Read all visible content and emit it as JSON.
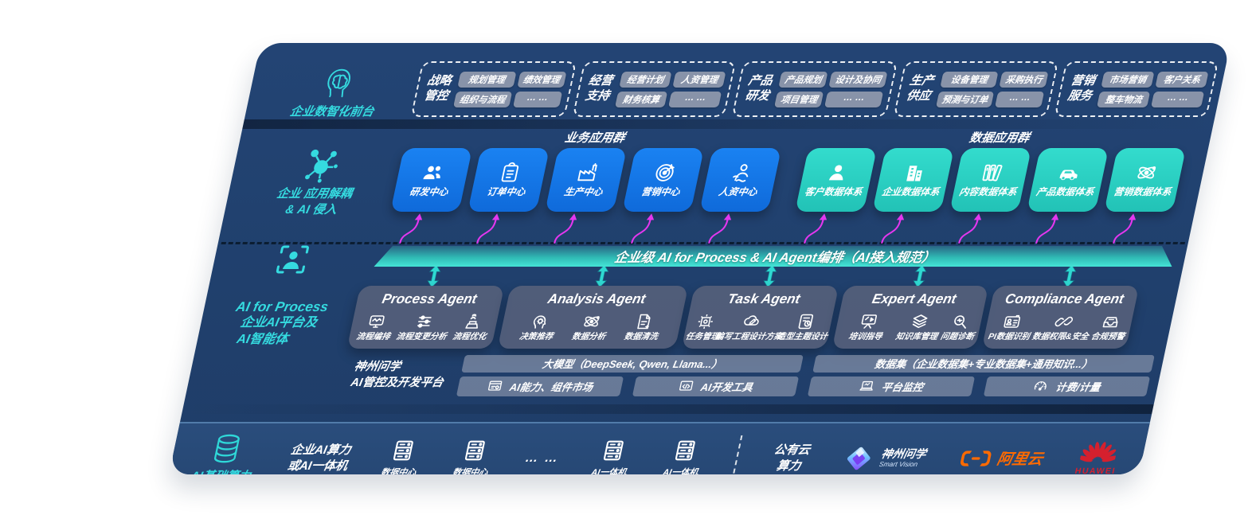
{
  "colors": {
    "navy": "#20406d",
    "accent_teal": "#35dbe0",
    "blue_box": "#1478ea",
    "teal_box": "#2cd3c5",
    "banner_teal": "#45e4d6",
    "magenta_arrow": "#e437ef",
    "aliyun_orange": "#ff6a00",
    "huawei_red": "#d5202e"
  },
  "front_office": {
    "icon": "brain-head-icon",
    "label": "企业数智化前台",
    "groups": [
      {
        "title": "战略管控",
        "items": [
          "规划管理",
          "绩效管理",
          "组织与流程",
          "… …"
        ]
      },
      {
        "title": "经营支持",
        "items": [
          "经营计划",
          "人资管理",
          "财务核算",
          "… …"
        ]
      },
      {
        "title": "产品研发",
        "items": [
          "产品规划",
          "设计及协同",
          "项目管理",
          "… …"
        ]
      },
      {
        "title": "生产供应",
        "items": [
          "设备管理",
          "采购执行",
          "预测与订单",
          "… …"
        ]
      },
      {
        "title": "营销服务",
        "items": [
          "市场营销",
          "客户关系",
          "整车物流",
          "… …"
        ]
      }
    ]
  },
  "app_layer": {
    "icon": "molecule-icon",
    "label_line1": "企业 应用解耦",
    "label_line2": "& AI 侵入",
    "business_group": {
      "title": "业务应用群",
      "boxes": [
        {
          "label": "研发中心",
          "icon": "team-icon"
        },
        {
          "label": "订单中心",
          "icon": "clipboard-icon"
        },
        {
          "label": "生产中心",
          "icon": "factory-icon"
        },
        {
          "label": "营销中心",
          "icon": "target-icon"
        },
        {
          "label": "人资中心",
          "icon": "person-wave-icon"
        }
      ]
    },
    "data_group": {
      "title": "数据应用群",
      "boxes": [
        {
          "label": "客户数据体系",
          "icon": "user-icon"
        },
        {
          "label": "企业数据体系",
          "icon": "building-icon"
        },
        {
          "label": "内容数据体系",
          "icon": "books-icon"
        },
        {
          "label": "产品数据体系",
          "icon": "car-icon"
        },
        {
          "label": "营销数据体系",
          "icon": "atom-icon"
        }
      ]
    }
  },
  "banner": {
    "text": "企业级 AI for Process & AI Agent编排（AI接入规范）"
  },
  "agent_layer": {
    "icon": "person-frame-icon",
    "label_line1": "AI for Process",
    "label_line2": "企业AI平台及",
    "label_line3": "AI智能体",
    "agents": [
      {
        "title": "Process Agent",
        "items": [
          {
            "label": "流程编排",
            "icon": "workflow-icon"
          },
          {
            "label": "流程变更分析",
            "icon": "sliders-icon"
          },
          {
            "label": "流程优化",
            "icon": "optimize-icon"
          }
        ]
      },
      {
        "title": "Analysis Agent",
        "items": [
          {
            "label": "决策推荐",
            "icon": "decision-icon"
          },
          {
            "label": "数据分析",
            "icon": "atom-icon"
          },
          {
            "label": "数据清洗",
            "icon": "clean-doc-icon"
          }
        ]
      },
      {
        "title": "Task Agent",
        "items": [
          {
            "label": "任务管理",
            "icon": "task-grid-icon"
          },
          {
            "label": "编写工程设计方案",
            "icon": "cloud-edit-icon"
          },
          {
            "label": "造型主题设计",
            "icon": "design-board-icon"
          }
        ]
      },
      {
        "title": "Expert Agent",
        "items": [
          {
            "label": "培训指导",
            "icon": "training-icon"
          },
          {
            "label": "知识库管理",
            "icon": "layers-icon"
          },
          {
            "label": "问题诊断",
            "icon": "diagnose-icon"
          }
        ]
      },
      {
        "title": "Compliance Agent",
        "items": [
          {
            "label": "PI数据识别",
            "icon": "id-card-icon"
          },
          {
            "label": "数据权限&安全",
            "icon": "link-shield-icon"
          },
          {
            "label": "合规预警",
            "icon": "inbox-alert-icon"
          }
        ]
      }
    ]
  },
  "platform": {
    "label_line1": "神州问学",
    "label_line2": "AI管控及开发平台",
    "model_bar": "大模型（DeepSeek, Qwen, Llama...）",
    "capability_bar": {
      "label": "AI能力、组件市场",
      "icon": "window-gear-icon"
    },
    "devtool_bar": {
      "label": "AI开发工具",
      "icon": "code-window-icon"
    },
    "dataset_bar": "数据集（企业数据集+专业数据集+通用知识...）",
    "monitor_bar": {
      "label": "平台监控",
      "icon": "laptop-icon"
    },
    "billing_bar": {
      "label": "计费/计量",
      "icon": "gauge-icon"
    }
  },
  "compute_layer": {
    "icon": "database-icon",
    "label": "AI基础算力",
    "compute_text_line1": "企业AI算力",
    "compute_text_line2": "或AI一体机",
    "nodes": [
      {
        "label": "数据中心",
        "icon": "server-icon"
      },
      {
        "label": "数据中心",
        "icon": "server-icon"
      }
    ],
    "dots": "… …",
    "nodes2": [
      {
        "label": "AI一体机",
        "icon": "server-icon"
      },
      {
        "label": "AI一体机",
        "icon": "server-icon"
      }
    ],
    "public_cloud_line1": "公有云",
    "public_cloud_line2": "算力",
    "logos": [
      {
        "name": "神州问学",
        "sub": "Smart Vision",
        "icon": "shenzhou-logo"
      },
      {
        "name": "阿里云",
        "icon": "aliyun-logo"
      },
      {
        "name": "HUAWEI",
        "icon": "huawei-logo"
      }
    ]
  }
}
